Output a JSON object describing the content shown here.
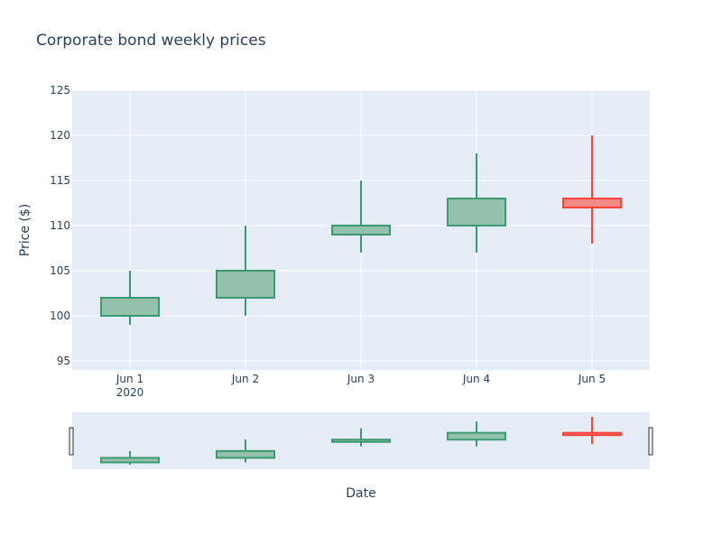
{
  "chart_data": {
    "type": "candlestick",
    "title": "Corporate bond weekly prices",
    "xlabel": "Date",
    "ylabel": "Price ($)",
    "ylim": [
      94,
      125
    ],
    "yticks": [
      95,
      100,
      105,
      110,
      115,
      120,
      125
    ],
    "categories": [
      "Jun 1",
      "Jun 2",
      "Jun 3",
      "Jun 4",
      "Jun 5"
    ],
    "year_label": "2020",
    "candles": [
      {
        "date": "Jun 1",
        "open": 100,
        "high": 105,
        "low": 99,
        "close": 102
      },
      {
        "date": "Jun 2",
        "open": 102,
        "high": 110,
        "low": 100,
        "close": 105
      },
      {
        "date": "Jun 3",
        "open": 109,
        "high": 115,
        "low": 107,
        "close": 110
      },
      {
        "date": "Jun 4",
        "open": 110,
        "high": 118,
        "low": 107,
        "close": 113
      },
      {
        "date": "Jun 5",
        "open": 113,
        "high": 120,
        "low": 108,
        "close": 112
      }
    ],
    "increasing_color": "#3d9970",
    "increasing_fill": "#93c1ac",
    "decreasing_color": "#ff4136",
    "decreasing_fill": "#f28b86",
    "grid": true,
    "rangeslider": true,
    "plot_bg": "#e5ecf6",
    "text_color": "#2a3f5f"
  }
}
